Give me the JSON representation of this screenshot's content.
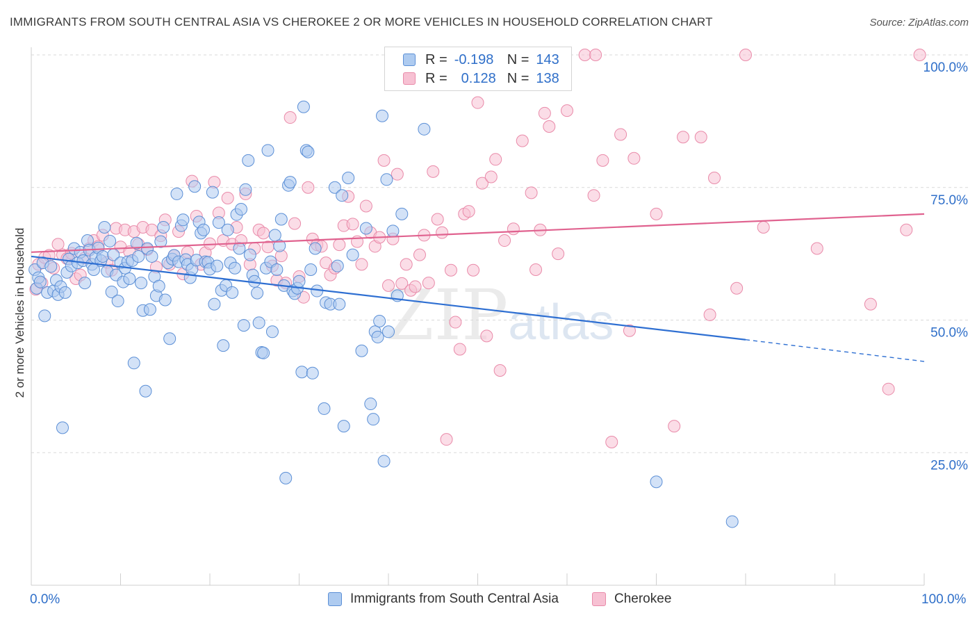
{
  "title": "IMMIGRANTS FROM SOUTH CENTRAL ASIA VS CHEROKEE 2 OR MORE VEHICLES IN HOUSEHOLD CORRELATION CHART",
  "source": "Source: ZipAtlas.com",
  "watermark": {
    "zip": "ZIP",
    "atlas": "atlas"
  },
  "legend": {
    "row1": {
      "r_label": "R =",
      "r_value": "-0.198",
      "n_label": "N =",
      "n_value": "143"
    },
    "row2": {
      "r_label": "R =",
      "r_value": "0.128",
      "n_label": "N =",
      "n_value": "138"
    }
  },
  "colors": {
    "blue_fill": "#aecbf0",
    "blue_stroke": "#5b8fd6",
    "blue_line": "#2e6fd2",
    "pink_fill": "#f7c1d3",
    "pink_stroke": "#e98aa9",
    "pink_line": "#e0628f",
    "tick_text": "#2f6fc9",
    "grid": "#d9d9d9"
  },
  "chart_data": {
    "type": "scatter",
    "title": "IMMIGRANTS FROM SOUTH CENTRAL ASIA VS CHEROKEE 2 OR MORE VEHICLES IN HOUSEHOLD CORRELATION CHART",
    "xlabel": "",
    "ylabel": "2 or more Vehicles in Household",
    "xlim": [
      0,
      100
    ],
    "ylim": [
      0,
      100
    ],
    "x_tick_labels": [
      "0.0%",
      "100.0%"
    ],
    "y_ticks": [
      {
        "value": 100,
        "label": "100.0%"
      },
      {
        "value": 75,
        "label": "75.0%"
      },
      {
        "value": 50,
        "label": "50.0%"
      },
      {
        "value": 25,
        "label": "25.0%"
      }
    ],
    "grid": true,
    "legend_position": "bottom",
    "series": [
      {
        "name": "Immigrants from South Central Asia",
        "color": "#aecbf0",
        "trend": {
          "x0": 0,
          "y0": 62.0,
          "x1": 80,
          "y1": 46.3,
          "dashed_to_x": 100,
          "dashed_to_y": 42.2
        },
        "points": [
          [
            0.4,
            59.5
          ],
          [
            0.6,
            56.0
          ],
          [
            0.8,
            58.0
          ],
          [
            1.0,
            57.2
          ],
          [
            1.3,
            60.8
          ],
          [
            1.5,
            50.8
          ],
          [
            1.8,
            55.2
          ],
          [
            2.2,
            60.1
          ],
          [
            2.5,
            55.5
          ],
          [
            2.8,
            57.5
          ],
          [
            3.0,
            54.8
          ],
          [
            3.3,
            56.3
          ],
          [
            3.5,
            29.7
          ],
          [
            3.8,
            55.2
          ],
          [
            4.0,
            59.0
          ],
          [
            4.2,
            61.5
          ],
          [
            4.5,
            60.2
          ],
          [
            4.8,
            63.5
          ],
          [
            5.2,
            60.8
          ],
          [
            5.5,
            62.8
          ],
          [
            5.8,
            61.2
          ],
          [
            6.0,
            57.0
          ],
          [
            6.3,
            65.0
          ],
          [
            6.5,
            63.2
          ],
          [
            6.8,
            60.5
          ],
          [
            7.0,
            59.5
          ],
          [
            7.2,
            61.8
          ],
          [
            7.5,
            63.6
          ],
          [
            7.8,
            61.2
          ],
          [
            8.0,
            62.0
          ],
          [
            8.2,
            67.5
          ],
          [
            8.5,
            59.2
          ],
          [
            8.8,
            64.9
          ],
          [
            9.0,
            55.3
          ],
          [
            9.2,
            62.3
          ],
          [
            9.5,
            58.5
          ],
          [
            9.7,
            53.6
          ],
          [
            10.0,
            60.8
          ],
          [
            10.3,
            57.2
          ],
          [
            10.5,
            59.8
          ],
          [
            10.8,
            61.0
          ],
          [
            11.0,
            57.8
          ],
          [
            11.3,
            61.2
          ],
          [
            11.5,
            41.9
          ],
          [
            11.8,
            64.5
          ],
          [
            12.0,
            62.0
          ],
          [
            12.3,
            57.0
          ],
          [
            12.5,
            51.8
          ],
          [
            12.8,
            36.6
          ],
          [
            13.0,
            63.5
          ],
          [
            13.3,
            52.0
          ],
          [
            13.5,
            62.0
          ],
          [
            13.8,
            58.2
          ],
          [
            14.0,
            54.6
          ],
          [
            14.3,
            56.4
          ],
          [
            14.5,
            64.8
          ],
          [
            14.8,
            67.5
          ],
          [
            15.0,
            53.8
          ],
          [
            15.3,
            60.8
          ],
          [
            15.5,
            46.5
          ],
          [
            15.8,
            61.5
          ],
          [
            16.0,
            62.2
          ],
          [
            16.3,
            73.8
          ],
          [
            16.5,
            61.0
          ],
          [
            16.8,
            67.8
          ],
          [
            17.0,
            68.9
          ],
          [
            17.3,
            61.4
          ],
          [
            17.5,
            60.5
          ],
          [
            17.8,
            58.0
          ],
          [
            18.0,
            59.6
          ],
          [
            18.3,
            75.2
          ],
          [
            18.5,
            61.3
          ],
          [
            18.8,
            68.5
          ],
          [
            19.0,
            66.4
          ],
          [
            19.3,
            67.0
          ],
          [
            19.5,
            61.0
          ],
          [
            19.8,
            60.9
          ],
          [
            20.0,
            59.6
          ],
          [
            20.3,
            74.1
          ],
          [
            20.5,
            53.0
          ],
          [
            20.8,
            60.2
          ],
          [
            21.0,
            68.4
          ],
          [
            21.3,
            55.6
          ],
          [
            21.5,
            45.2
          ],
          [
            21.8,
            56.5
          ],
          [
            22.0,
            67.0
          ],
          [
            22.3,
            60.8
          ],
          [
            22.5,
            55.2
          ],
          [
            22.8,
            59.8
          ],
          [
            23.0,
            69.9
          ],
          [
            23.3,
            63.5
          ],
          [
            23.5,
            70.9
          ],
          [
            23.8,
            49.0
          ],
          [
            24.0,
            74.6
          ],
          [
            24.3,
            80.1
          ],
          [
            24.5,
            62.3
          ],
          [
            24.8,
            58.5
          ],
          [
            25.0,
            57.3
          ],
          [
            25.3,
            55.1
          ],
          [
            25.5,
            49.5
          ],
          [
            25.8,
            43.9
          ],
          [
            26.0,
            43.8
          ],
          [
            26.3,
            59.8
          ],
          [
            26.5,
            82.0
          ],
          [
            26.8,
            61.0
          ],
          [
            27.0,
            47.8
          ],
          [
            27.3,
            66.0
          ],
          [
            27.5,
            59.5
          ],
          [
            27.8,
            64.0
          ],
          [
            28.0,
            69.0
          ],
          [
            28.3,
            56.5
          ],
          [
            28.5,
            20.2
          ],
          [
            28.8,
            75.4
          ],
          [
            29.0,
            76.0
          ],
          [
            29.3,
            55.5
          ],
          [
            29.5,
            55.0
          ],
          [
            29.8,
            56.0
          ],
          [
            30.0,
            57.3
          ],
          [
            30.3,
            40.2
          ],
          [
            30.5,
            90.2
          ],
          [
            30.8,
            82.0
          ],
          [
            31.0,
            81.7
          ],
          [
            31.3,
            59.5
          ],
          [
            31.5,
            40.0
          ],
          [
            31.8,
            63.5
          ],
          [
            32.0,
            55.5
          ],
          [
            32.8,
            33.3
          ],
          [
            33.0,
            53.3
          ],
          [
            33.5,
            53.0
          ],
          [
            34.0,
            75.0
          ],
          [
            34.3,
            60.2
          ],
          [
            34.5,
            53.0
          ],
          [
            34.8,
            73.5
          ],
          [
            35.0,
            30.0
          ],
          [
            35.5,
            76.8
          ],
          [
            36.0,
            62.3
          ],
          [
            37.0,
            44.2
          ],
          [
            37.5,
            67.3
          ],
          [
            38.0,
            34.2
          ],
          [
            38.3,
            31.3
          ],
          [
            38.5,
            47.8
          ],
          [
            38.8,
            46.8
          ],
          [
            39.0,
            49.8
          ],
          [
            39.3,
            88.5
          ],
          [
            39.5,
            23.4
          ],
          [
            39.8,
            76.5
          ],
          [
            40.0,
            47.8
          ],
          [
            40.5,
            66.8
          ],
          [
            41.0,
            54.6
          ],
          [
            41.5,
            70.0
          ],
          [
            44.0,
            86.0
          ],
          [
            70.0,
            19.5
          ],
          [
            78.5,
            12.0
          ]
        ]
      },
      {
        "name": "Cherokee",
        "color": "#f7c1d3",
        "trend": {
          "x0": 0,
          "y0": 62.8,
          "x1": 100,
          "y1": 70.0
        },
        "points": [
          [
            0.5,
            55.8
          ],
          [
            0.8,
            60.5
          ],
          [
            1.2,
            57.0
          ],
          [
            1.5,
            61.8
          ],
          [
            2.0,
            62.2
          ],
          [
            2.5,
            59.8
          ],
          [
            3.0,
            64.3
          ],
          [
            3.5,
            62.3
          ],
          [
            4.0,
            61.6
          ],
          [
            4.5,
            62.6
          ],
          [
            5.0,
            57.8
          ],
          [
            5.5,
            58.5
          ],
          [
            6.0,
            61.7
          ],
          [
            6.5,
            63.5
          ],
          [
            7.0,
            65.0
          ],
          [
            7.5,
            63.9
          ],
          [
            8.0,
            66.0
          ],
          [
            8.5,
            60.9
          ],
          [
            9.0,
            59.4
          ],
          [
            9.5,
            67.3
          ],
          [
            10.0,
            63.8
          ],
          [
            10.5,
            67.0
          ],
          [
            11.0,
            62.9
          ],
          [
            11.5,
            66.7
          ],
          [
            12.0,
            64.3
          ],
          [
            12.5,
            67.5
          ],
          [
            13.0,
            63.3
          ],
          [
            13.5,
            67.0
          ],
          [
            14.0,
            60.0
          ],
          [
            14.5,
            65.9
          ],
          [
            15.0,
            68.9
          ],
          [
            15.5,
            60.5
          ],
          [
            16.0,
            62.2
          ],
          [
            16.5,
            66.7
          ],
          [
            17.0,
            58.7
          ],
          [
            17.5,
            62.8
          ],
          [
            18.0,
            76.2
          ],
          [
            18.5,
            69.6
          ],
          [
            19.0,
            60.5
          ],
          [
            19.5,
            62.7
          ],
          [
            20.0,
            64.4
          ],
          [
            20.5,
            76.0
          ],
          [
            21.0,
            70.2
          ],
          [
            21.5,
            65.0
          ],
          [
            22.0,
            73.0
          ],
          [
            22.5,
            64.3
          ],
          [
            23.0,
            67.5
          ],
          [
            23.5,
            65.0
          ],
          [
            24.0,
            73.8
          ],
          [
            24.5,
            60.5
          ],
          [
            25.0,
            63.5
          ],
          [
            25.5,
            67.0
          ],
          [
            26.0,
            66.4
          ],
          [
            26.5,
            63.8
          ],
          [
            27.0,
            60.2
          ],
          [
            27.5,
            57.5
          ],
          [
            28.0,
            62.1
          ],
          [
            28.5,
            57.0
          ],
          [
            29.0,
            88.2
          ],
          [
            29.5,
            68.2
          ],
          [
            30.0,
            58.2
          ],
          [
            30.5,
            54.3
          ],
          [
            31.0,
            75.0
          ],
          [
            31.5,
            65.3
          ],
          [
            32.0,
            64.2
          ],
          [
            32.5,
            63.9
          ],
          [
            33.0,
            60.8
          ],
          [
            33.5,
            58.5
          ],
          [
            34.0,
            59.8
          ],
          [
            34.5,
            64.2
          ],
          [
            35.0,
            67.8
          ],
          [
            35.5,
            73.3
          ],
          [
            36.0,
            68.1
          ],
          [
            36.5,
            64.8
          ],
          [
            37.0,
            60.5
          ],
          [
            37.5,
            71.5
          ],
          [
            38.0,
            66.5
          ],
          [
            38.5,
            63.9
          ],
          [
            39.0,
            65.6
          ],
          [
            39.5,
            80.1
          ],
          [
            40.0,
            56.5
          ],
          [
            40.5,
            65.3
          ],
          [
            41.0,
            77.5
          ],
          [
            41.5,
            56.9
          ],
          [
            42.0,
            60.5
          ],
          [
            42.5,
            55.6
          ],
          [
            43.0,
            56.3
          ],
          [
            43.5,
            62.3
          ],
          [
            44.0,
            66.0
          ],
          [
            44.5,
            57.0
          ],
          [
            45.0,
            78.0
          ],
          [
            45.5,
            69.0
          ],
          [
            46.0,
            66.5
          ],
          [
            46.5,
            27.5
          ],
          [
            47.0,
            59.4
          ],
          [
            47.5,
            49.6
          ],
          [
            48.0,
            44.5
          ],
          [
            48.5,
            70.0
          ],
          [
            49.0,
            70.5
          ],
          [
            49.5,
            59.4
          ],
          [
            50.0,
            91.0
          ],
          [
            50.5,
            75.8
          ],
          [
            51.0,
            47.0
          ],
          [
            51.5,
            77.0
          ],
          [
            52.0,
            80.3
          ],
          [
            52.5,
            40.5
          ],
          [
            53.0,
            65.0
          ],
          [
            54.0,
            67.2
          ],
          [
            55.0,
            83.8
          ],
          [
            56.0,
            74.0
          ],
          [
            56.5,
            59.5
          ],
          [
            57.0,
            67.0
          ],
          [
            57.5,
            89.0
          ],
          [
            58.0,
            86.5
          ],
          [
            59.0,
            62.5
          ],
          [
            60.0,
            89.5
          ],
          [
            62.0,
            100
          ],
          [
            63.0,
            73.5
          ],
          [
            63.2,
            100
          ],
          [
            64.0,
            80.1
          ],
          [
            65.0,
            27.0
          ],
          [
            66.0,
            85.0
          ],
          [
            67.0,
            48.0
          ],
          [
            67.5,
            80.5
          ],
          [
            70.0,
            70.0
          ],
          [
            72.0,
            30.0
          ],
          [
            73.0,
            84.5
          ],
          [
            75.0,
            84.5
          ],
          [
            76.0,
            51.0
          ],
          [
            76.5,
            76.8
          ],
          [
            79.0,
            56.0
          ],
          [
            80.0,
            100
          ],
          [
            82.0,
            67.5
          ],
          [
            88.0,
            63.5
          ],
          [
            94.0,
            53.0
          ],
          [
            96.0,
            37.0
          ],
          [
            98.0,
            67.0
          ],
          [
            99.5,
            100
          ]
        ]
      }
    ]
  },
  "axis_labels": {
    "y": "2 or more Vehicles in Household",
    "x_min": "0.0%",
    "x_max": "100.0%"
  },
  "bottom_legend": {
    "item1": "Immigrants from South Central Asia",
    "item2": "Cherokee"
  }
}
